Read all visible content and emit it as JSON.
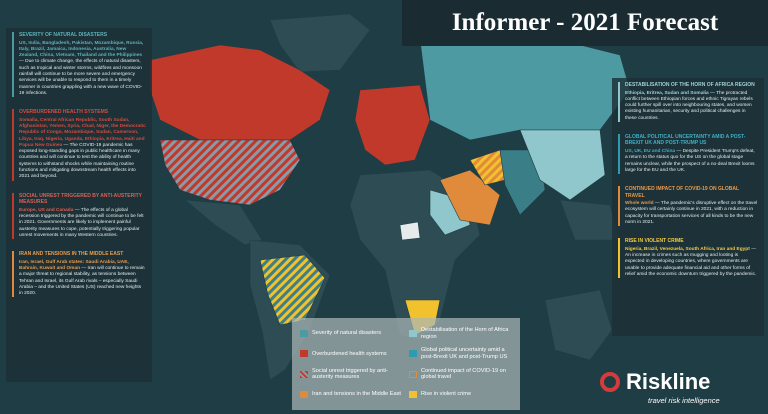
{
  "title": "Informer - 2021 Forecast",
  "left_panel": [
    {
      "heading": "SEVERITY OF NATURAL DISASTERS",
      "places": "US, India, Bangladesh, Pakistan, Mozambique, Russia, Italy, Brazil, Jamaica, Indonesia, Australia, New Zealand, China, Vietnam, Thailand and the Philippines",
      "text": "— Due to climate change, the effects of natural disasters, such as tropical and winter storms, wildfires and monsoon rainfall will continue to be more severe and emergency services will be unable to respond to them in a timely manner in countries grappling with a new wave of COVID-19 infections."
    },
    {
      "heading": "OVERBURDENED HEALTH SYSTEMS",
      "places": "Somalia, Central African Republic, South Sudan, Afghanistan, Yemen, Syria, Chad, Niger, the Democratic Republic of Congo, Mozambique, Sudan, Cameroon, Libya, Iraq, Nigeria, Uganda, Ethiopia, Eritrea, Haiti and Papua New Guinea",
      "text": "— The COVID-19 pandemic has exposed long-standing gaps in public healthcare in many countries and will continue to test the ability of health systems to withstand shocks while maintaining routine functions and mitigating downstream health effects into 2021 and beyond."
    },
    {
      "heading": "SOCIAL UNREST TRIGGERED BY ANTI-AUSTERITY MEASURES",
      "places": "Europe, US and Canada",
      "text": "— The effects of a global recession triggered by the pandemic will continue to be felt in 2021. Governments are likely to implement painful austerity measures to cope, potentially triggering popular unrest movements in many Western countries."
    },
    {
      "heading": "IRAN AND TENSIONS IN THE MIDDLE EAST",
      "places": "Iran, Israel, Gulf Arab states: Saudi Arabia, UAE, Bahrain, Kuwait and Oman",
      "text": "— Iran will continue to remain a major threat to regional stability, as tensions between Tehran and Israel, its Gulf Arab rivals – especially Saudi Arabia – and the United States (US) reached new heights in 2020."
    }
  ],
  "right_panel": [
    {
      "heading": "DESTABILISATION OF THE HORN OF AFRICA REGION",
      "places": "Ethiopia, Eritrea, Sudan and Somalia",
      "text": "— The protracted conflict between Ethiopian forces and ethnic Tigrayan rebels could further spill over into neighbouring states, and worsen existing humanitarian, security and political challenges in these countries."
    },
    {
      "heading": "GLOBAL POLITICAL UNCERTAINTY AMID A POST-BREXIT UK AND POST-TRUMP US",
      "places": "US, UK, EU and China",
      "text": "— Despite President Trump's defeat, a return to the status quo for the US on the global stage remains unclear, while the prospect of a no-deal Brexit looms large for the EU and the UK."
    },
    {
      "heading": "CONTINUED IMPACT OF COVID-19 ON GLOBAL TRAVEL",
      "places": "Whole world",
      "text": "— The pandemic's disruptive effect on the travel ecosystem will certainly continue in 2021, with a reduction in capacity for transportation services of all kinds to be the new norm in 2021."
    },
    {
      "heading": "RISE IN VIOLENT CRIME",
      "places": "Nigeria, Brazil, Venezuela, South Africa, Iran and Egypt",
      "text": "— An increase in crimes such as mugging and looting is expected in developing countries, where governments are unable to provide adequate financial aid and other forms of relief amid the economic downturn triggered by the pandemic."
    }
  ],
  "legend": [
    "Severity of natural disasters",
    "Overburdened health systems",
    "Social unrest triggered by anti-austerity measures",
    "Iran and tensions in the Middle East",
    "Destabilisation of the Horn of Africa region",
    "Global political uncertainty amid a post-Brexit UK and post-Trump US",
    "Continued impact of COVID-19 on global travel",
    "Rise in violent crime"
  ],
  "logo": {
    "name": "Riskline",
    "tagline": "travel risk intelligence"
  }
}
